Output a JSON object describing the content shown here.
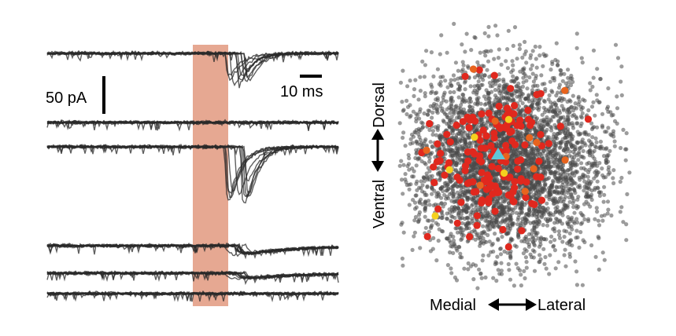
{
  "figure": {
    "scale_bar_current_label": "50 pA",
    "scale_bar_time_label": "10 ms",
    "axis_dorsal_label": "Dorsal",
    "axis_ventral_label": "Ventral",
    "axis_medial_label": "Medial",
    "axis_lateral_label": "Lateral"
  },
  "colors": {
    "stimulus_window": "#e6a892",
    "trace": "#2a2a2a",
    "background_dot": "#4a4a4a",
    "dot_red": "#e0281e",
    "dot_orange": "#e8641e",
    "dot_yellow": "#f5d01e",
    "triangle_marker": "#5fc8d8"
  },
  "icons": {
    "dorsal_ventral_arrow": "double-headed-vertical-arrow",
    "medial_lateral_arrow": "double-headed-horizontal-arrow",
    "recording_site_marker": "triangle"
  },
  "traces": {
    "groups": [
      {
        "name": "row-1",
        "n_sweeps": 10,
        "response": "large-inward"
      },
      {
        "name": "row-2",
        "n_sweeps": 10,
        "response": "none"
      },
      {
        "name": "row-3",
        "n_sweeps": 10,
        "response": "large-inward"
      },
      {
        "name": "row-4",
        "n_sweeps": 10,
        "response": "small-inward"
      },
      {
        "name": "row-5",
        "n_sweeps": 10,
        "response": "small-inward"
      },
      {
        "name": "row-6",
        "n_sweeps": 10,
        "response": "none"
      }
    ]
  },
  "scatter": {
    "background_points": 4200,
    "highlighted": {
      "red": 150,
      "orange": 11,
      "yellow": 5
    }
  }
}
